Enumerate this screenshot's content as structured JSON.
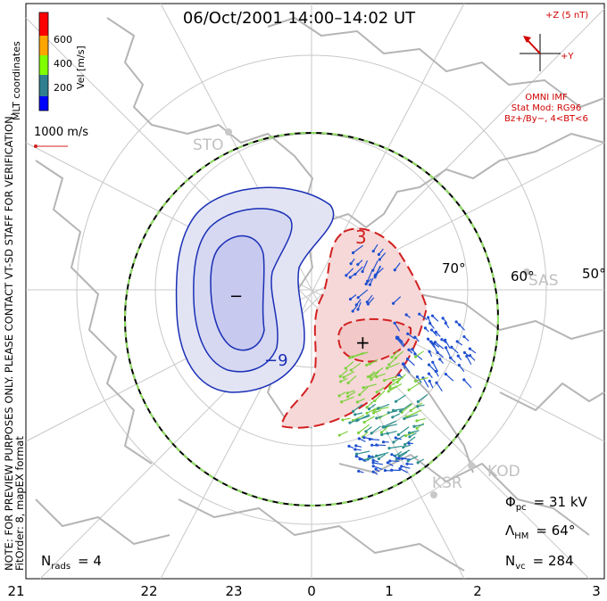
{
  "title": "06/Oct/2001 14:00–14:02 UT",
  "note": {
    "line1": "NOTE: FOR PREVIEW PURPOSES ONLY. PLEASE CONTACT VT-SD STAFF FOR VERIFICATION.",
    "line2": "FitOrder: 8, mapEX format"
  },
  "coord_label": "MLT coordinates",
  "colorbar": {
    "label": "Vel [m/s]",
    "ticks": [
      "600",
      "400",
      "200"
    ],
    "colors": [
      "#0000ff",
      "#2f7f8f",
      "#7fff00",
      "#ffa500",
      "#ff0000"
    ]
  },
  "vector_scale": {
    "label": "1000 m/s"
  },
  "imf": {
    "z_label": "+Z (5 nT)",
    "y_label": "+Y",
    "source": "OMNI IMF",
    "model_line1": "Stat Mod: RG96",
    "model_line2": "Bz+/By−, 4<BT<6"
  },
  "stations": [
    {
      "name": "STO"
    },
    {
      "name": "SAS"
    },
    {
      "name": "KOD"
    },
    {
      "name": "KSR"
    }
  ],
  "lat_labels": [
    "70°",
    "60°",
    "50°"
  ],
  "mlt_ticks": [
    "21",
    "22",
    "23",
    "0",
    "1",
    "2",
    "3"
  ],
  "contours": {
    "negative_cell_label": "−9",
    "positive_cell_label": "3",
    "min_marker": "−",
    "max_marker": "+"
  },
  "stats": {
    "phi_pc": {
      "symbol": "Φ",
      "sub": "pc",
      "value": "= 31 kV"
    },
    "lambda_hm": {
      "symbol": "Λ",
      "sub": "HM",
      "value": "= 64°"
    },
    "n_vc": {
      "symbol": "N",
      "sub": "vc",
      "value": "= 284"
    },
    "n_rads": {
      "symbol": "N",
      "sub": "rads",
      "value": "= 4"
    }
  },
  "colors": {
    "coast": "#b5b5b5",
    "grid": "#c8c8c8",
    "negative_fill": "#e2e4f4",
    "negative_inner": "#c8c9ef",
    "negative_line": "#1a2fb5",
    "positive_fill": "#f6d8d8",
    "positive_line": "#d22020",
    "annotation_red": "#d00000",
    "hmb_dash": "#8fe060"
  }
}
